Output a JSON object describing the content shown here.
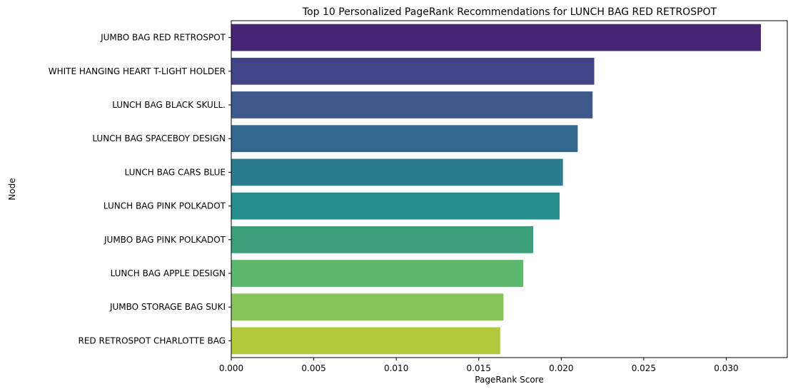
{
  "chart_data": {
    "type": "bar",
    "orientation": "horizontal",
    "title": "Top 10 Personalized PageRank Recommendations for LUNCH BAG RED RETROSPOT",
    "xlabel": "PageRank Score",
    "ylabel": "Node",
    "xlim": [
      0,
      0.0337
    ],
    "xticks": [
      "0.000",
      "0.005",
      "0.010",
      "0.015",
      "0.020",
      "0.025",
      "0.030"
    ],
    "grid": false,
    "categories": [
      "JUMBO BAG RED RETROSPOT",
      "WHITE HANGING HEART T-LIGHT HOLDER",
      "LUNCH BAG  BLACK SKULL.",
      "LUNCH BAG SPACEBOY DESIGN ",
      "LUNCH BAG CARS BLUE",
      "LUNCH BAG PINK POLKADOT",
      "JUMBO BAG PINK POLKADOT",
      "LUNCH BAG APPLE DESIGN",
      "JUMBO STORAGE BAG SUKI",
      "RED RETROSPOT CHARLOTTE BAG"
    ],
    "values": [
      0.0321,
      0.022,
      0.0219,
      0.021,
      0.0201,
      0.0199,
      0.0183,
      0.0177,
      0.0165,
      0.0163
    ],
    "colors": [
      "#482878",
      "#3e4989",
      "#31688e",
      "#26828e",
      "#1f9e89",
      "#35b779",
      "#6ece58",
      "#b5de2b",
      "#d2e21b",
      "#fde725"
    ],
    "bar_colors": [
      "#482475",
      "#414487",
      "#3e5a8c",
      "#32698c",
      "#2a7b8d",
      "#238e8a",
      "#3ba07a",
      "#5db86c",
      "#86c35b",
      "#b2c93a"
    ]
  }
}
